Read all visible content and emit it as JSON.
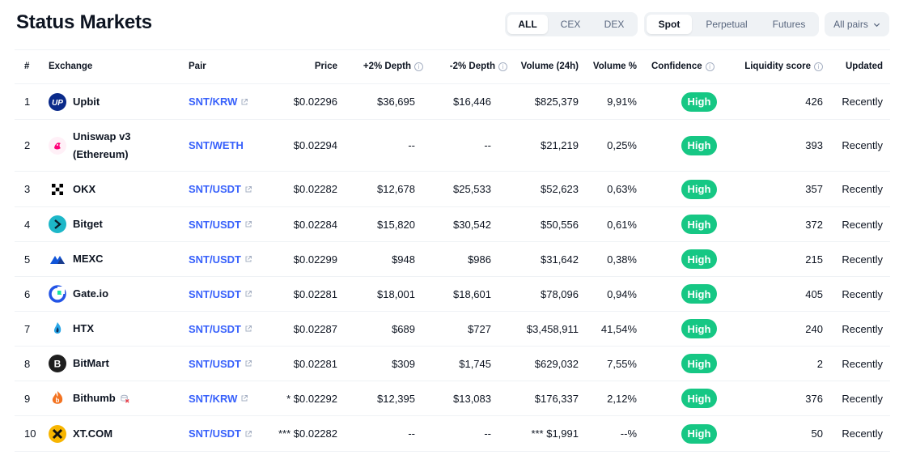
{
  "title": "Status Markets",
  "filters": {
    "type_tabs": [
      "ALL",
      "CEX",
      "DEX"
    ],
    "active_type": "ALL",
    "market_tabs": [
      "Spot",
      "Perpetual",
      "Futures"
    ],
    "active_market": "Spot",
    "pairs_dropdown": "All pairs"
  },
  "columns": [
    "#",
    "Exchange",
    "Pair",
    "Price",
    "+2% Depth",
    "-2% Depth",
    "Volume (24h)",
    "Volume %",
    "Confidence",
    "Liquidity score",
    "Updated"
  ],
  "colors": {
    "accent": "#3861fb",
    "high": "#16c784",
    "border": "#eff2f5"
  },
  "rows": [
    {
      "rank": "1",
      "exchange": "Upbit",
      "pair": "SNT/KRW",
      "price": "$0.02296",
      "depth_plus": "$36,695",
      "depth_minus": "$16,446",
      "volume": "$825,379",
      "volume_pct": "9,91%",
      "confidence": "High",
      "liquidity": "426",
      "updated": "Recently",
      "logo": "upbit-icon",
      "ext": true
    },
    {
      "rank": "2",
      "exchange": "Uniswap v3",
      "exchange2": "(Ethereum)",
      "pair": "SNT/WETH",
      "price": "$0.02294",
      "depth_plus": "--",
      "depth_minus": "--",
      "volume": "$21,219",
      "volume_pct": "0,25%",
      "confidence": "High",
      "liquidity": "393",
      "updated": "Recently",
      "logo": "uniswap-icon",
      "ext": false
    },
    {
      "rank": "3",
      "exchange": "OKX",
      "pair": "SNT/USDT",
      "price": "$0.02282",
      "depth_plus": "$12,678",
      "depth_minus": "$25,533",
      "volume": "$52,623",
      "volume_pct": "0,63%",
      "confidence": "High",
      "liquidity": "357",
      "updated": "Recently",
      "logo": "okx-icon",
      "ext": true
    },
    {
      "rank": "4",
      "exchange": "Bitget",
      "pair": "SNT/USDT",
      "price": "$0.02284",
      "depth_plus": "$15,820",
      "depth_minus": "$30,542",
      "volume": "$50,556",
      "volume_pct": "0,61%",
      "confidence": "High",
      "liquidity": "372",
      "updated": "Recently",
      "logo": "bitget-icon",
      "ext": true
    },
    {
      "rank": "5",
      "exchange": "MEXC",
      "pair": "SNT/USDT",
      "price": "$0.02299",
      "depth_plus": "$948",
      "depth_minus": "$986",
      "volume": "$31,642",
      "volume_pct": "0,38%",
      "confidence": "High",
      "liquidity": "215",
      "updated": "Recently",
      "logo": "mexc-icon",
      "ext": true
    },
    {
      "rank": "6",
      "exchange": "Gate.io",
      "pair": "SNT/USDT",
      "price": "$0.02281",
      "depth_plus": "$18,001",
      "depth_minus": "$18,601",
      "volume": "$78,096",
      "volume_pct": "0,94%",
      "confidence": "High",
      "liquidity": "405",
      "updated": "Recently",
      "logo": "gateio-icon",
      "ext": true
    },
    {
      "rank": "7",
      "exchange": "HTX",
      "pair": "SNT/USDT",
      "price": "$0.02287",
      "depth_plus": "$689",
      "depth_minus": "$727",
      "volume": "$3,458,911",
      "volume_pct": "41,54%",
      "confidence": "High",
      "liquidity": "240",
      "updated": "Recently",
      "logo": "htx-icon",
      "ext": true
    },
    {
      "rank": "8",
      "exchange": "BitMart",
      "pair": "SNT/USDT",
      "price": "$0.02281",
      "depth_plus": "$309",
      "depth_minus": "$1,745",
      "volume": "$629,032",
      "volume_pct": "7,55%",
      "confidence": "High",
      "liquidity": "2",
      "updated": "Recently",
      "logo": "bitmart-icon",
      "ext": true
    },
    {
      "rank": "9",
      "exchange": "Bithumb",
      "pair": "SNT/KRW",
      "price": "* $0.02292",
      "depth_plus": "$12,395",
      "depth_minus": "$13,083",
      "volume": "$176,337",
      "volume_pct": "2,12%",
      "confidence": "High",
      "liquidity": "376",
      "updated": "Recently",
      "logo": "bithumb-icon",
      "ext": true,
      "warning": true
    },
    {
      "rank": "10",
      "exchange": "XT.COM",
      "pair": "SNT/USDT",
      "price": "*** $0.02282",
      "depth_plus": "--",
      "depth_minus": "--",
      "volume": "*** $1,991",
      "volume_pct": "--%",
      "confidence": "High",
      "liquidity": "50",
      "updated": "Recently",
      "logo": "xtcom-icon",
      "ext": true
    }
  ]
}
